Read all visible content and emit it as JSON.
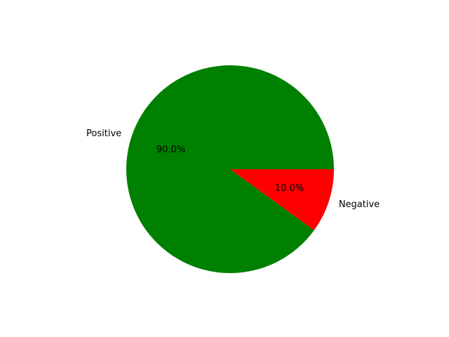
{
  "chart_data": {
    "type": "pie",
    "title": "",
    "slices": [
      {
        "label": "Positive",
        "value": 90.0,
        "pct_label": "90.0%",
        "color": "#008000"
      },
      {
        "label": "Negative",
        "value": 10.0,
        "pct_label": "10.0%",
        "color": "#ff0000"
      }
    ],
    "start_angle_deg": 0,
    "direction": "counterclockwise",
    "autopct": true,
    "legend": "none"
  }
}
